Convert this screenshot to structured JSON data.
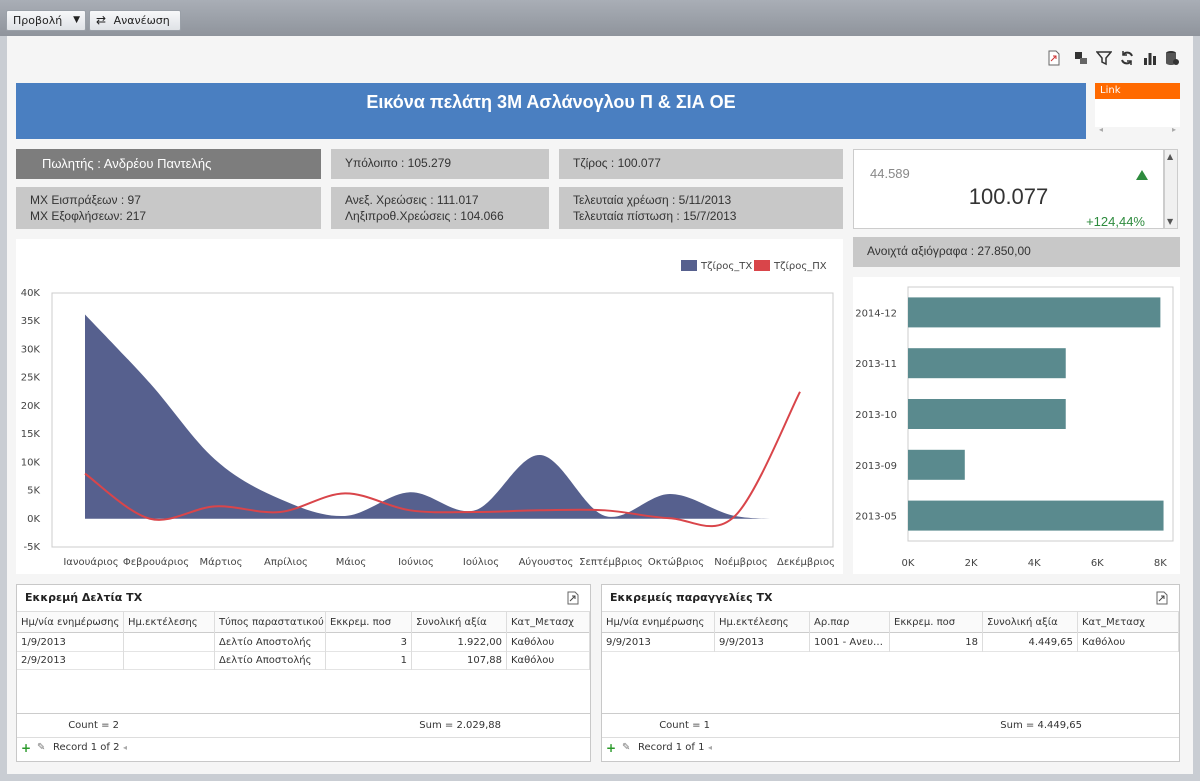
{
  "toolbar": {
    "view_label": "Προβολή",
    "refresh_label": "Ανανέωση"
  },
  "header": {
    "title": "Εικόνα πελάτη 3Μ Ασλάνογλου Π & ΣΙΑ ΟΕ",
    "link_label": "Link"
  },
  "cards": {
    "salesman": "Πωλητής : Ανδρέου Παντελής",
    "balance": "Υπόλοιπο : 105.279",
    "turnover": "Τζίρος : 100.077",
    "avg_receipts": "ΜΧ Εισπράξεων : 97",
    "avg_payments": "ΜΧ Εξοφλήσεων: 217",
    "unpaid_charges": "Ανεξ. Χρεώσεις : 111.017",
    "overdue_charges": "Ληξιπροθ.Χρεώσεις : 104.066",
    "last_charge": "Τελευταία χρέωση : 5/11/2013",
    "last_credit": "Τελευταία πίστωση : 15/7/2013",
    "open_cheques": "Ανοιχτά αξιόγραφα : 27.850,00"
  },
  "kpi": {
    "previous": "44.589",
    "value": "100.077",
    "delta": "+124,44%",
    "trend_color": "#2e8b3e"
  },
  "chart_data": [
    {
      "type": "area",
      "categories": [
        "Ιανουάριος",
        "Φεβρουάριος",
        "Μάρτιος",
        "Απρίλιος",
        "Μάιος",
        "Ιούνιος",
        "Ιούλιος",
        "Αύγουστος",
        "Σεπτέμβριος",
        "Οκτώβριος",
        "Νοέμβριος",
        "Δεκέμβριος"
      ],
      "series": [
        {
          "name": "Τζίρος_ΤΧ",
          "type": "area",
          "color": "#56608e",
          "values": [
            36200,
            24000,
            10500,
            3500,
            500,
            4700,
            1500,
            11300,
            500,
            4400,
            500,
            0
          ]
        },
        {
          "name": "Τζίρος_ΠΧ",
          "type": "line",
          "color": "#d9454a",
          "values": [
            8000,
            0,
            2200,
            1200,
            4500,
            1500,
            1200,
            1500,
            1500,
            100,
            500,
            22500
          ]
        }
      ],
      "ylim": [
        -5000,
        40000
      ],
      "yticks": [
        "-5K",
        "0K",
        "5K",
        "10K",
        "15K",
        "20K",
        "25K",
        "30K",
        "35K",
        "40K"
      ],
      "grid": false,
      "legend": "top-right"
    },
    {
      "type": "bar",
      "orientation": "horizontal",
      "categories": [
        "2014-12",
        "2013-11",
        "2013-10",
        "2013-09",
        "2013-05"
      ],
      "values": [
        8000,
        5000,
        5000,
        1800,
        8100
      ],
      "xlim": [
        0,
        8400
      ],
      "xticks": [
        "0K",
        "2K",
        "4K",
        "6K",
        "8K"
      ],
      "color": "#5a8a8e"
    }
  ],
  "grid_left": {
    "title": "Εκκρεμή Δελτία ΤΧ",
    "columns": [
      "Ημ/νία ενημέρωσης",
      "Ημ.εκτέλεσης",
      "Τύπος παραστατικού",
      "Εκκρεμ. ποσ",
      "Συνολική αξία",
      "Κατ_Μετασχ"
    ],
    "rows": [
      [
        "1/9/2013",
        "",
        "Δελτίο Αποστολής",
        "3",
        "1.922,00",
        "Καθόλου"
      ],
      [
        "2/9/2013",
        "",
        "Δελτίο Αποστολής",
        "1",
        "107,88",
        "Καθόλου"
      ]
    ],
    "count": "Count = 2",
    "sum": "Sum = 2.029,88",
    "record": "Record 1 of 2"
  },
  "grid_right": {
    "title": "Εκκρεμείς παραγγελίες ΤΧ",
    "columns": [
      "Ημ/νία ενημέρωσης",
      "Ημ.εκτέλεσης",
      "Αρ.παρ",
      "Εκκρεμ. ποσ",
      "Συνολική αξία",
      "Κατ_Μετασχ"
    ],
    "rows": [
      [
        "9/9/2013",
        "9/9/2013",
        "1001 - Ανευ…",
        "18",
        "4.449,65",
        "Καθόλου"
      ]
    ],
    "count": "Count = 1",
    "sum": "Sum = 4.449,65",
    "record": "Record 1 of 1"
  }
}
